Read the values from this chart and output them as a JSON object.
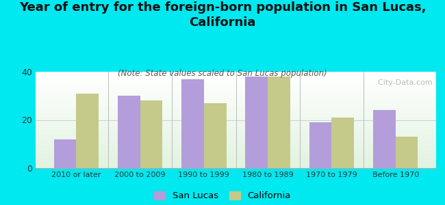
{
  "title": "Year of entry for the foreign-born population in San Lucas,\nCalifornia",
  "subtitle": "(Note: State values scaled to San Lucas population)",
  "categories": [
    "2010 or later",
    "2000 to 2009",
    "1990 to 1999",
    "1980 to 1989",
    "1970 to 1979",
    "Before 1970"
  ],
  "san_lucas": [
    12,
    30,
    37,
    38,
    19,
    24
  ],
  "california": [
    31,
    28,
    27,
    38,
    21,
    13
  ],
  "san_lucas_color": "#b39ddb",
  "california_color": "#c5c98a",
  "background_color": "#00e8f0",
  "ylim": [
    0,
    40
  ],
  "yticks": [
    0,
    20,
    40
  ],
  "bar_width": 0.35,
  "title_fontsize": 13,
  "subtitle_fontsize": 8.5,
  "legend_labels": [
    "San Lucas",
    "California"
  ],
  "watermark": "  City-Data.com"
}
